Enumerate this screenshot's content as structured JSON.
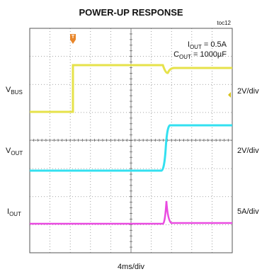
{
  "title": "POWER-UP RESPONSE",
  "figure_id": "toc12",
  "trigger_marker": "T",
  "annotation": [
    {
      "main": "I",
      "sub": "OUT",
      "rest": " = 0.5A"
    },
    {
      "main": "C",
      "sub": "OUT",
      "rest": " = 1000µF"
    }
  ],
  "channels": [
    {
      "main": "V",
      "sub": "BUS",
      "scale": "2V/div"
    },
    {
      "main": "V",
      "sub": "OUT",
      "scale": "2V/div"
    },
    {
      "main": "I",
      "sub": "OUT",
      "scale": "5A/div"
    }
  ],
  "time_scale": "4ms/div"
}
